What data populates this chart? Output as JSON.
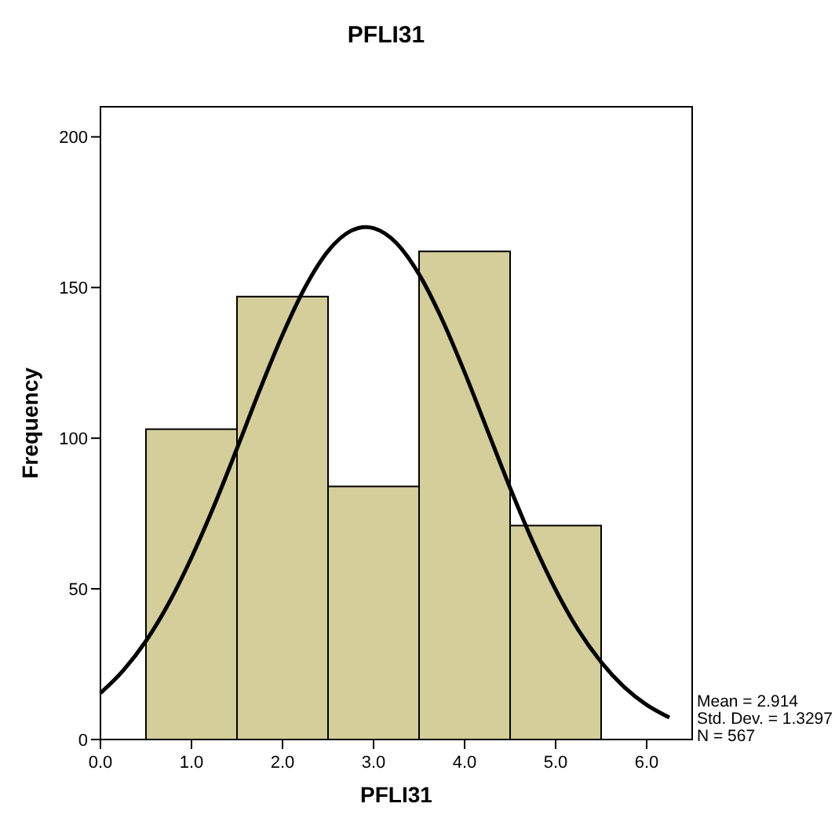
{
  "chart_data": {
    "type": "histogram",
    "title": "PFLI31",
    "xlabel": "PFLI31",
    "ylabel": "Frequency",
    "series": [
      {
        "bins": [
          0.5,
          1.5,
          2.5,
          3.5,
          4.5,
          5.5
        ],
        "values": [
          103,
          147,
          84,
          162,
          71
        ],
        "color": "#d3ce9a"
      },
      {
        "type": "line",
        "color": "#000000",
        "x": [
          0,
          0.25,
          0.5,
          0.75,
          1,
          1.25,
          1.5,
          1.75,
          2,
          2.25,
          2.5,
          2.75,
          2.914,
          3,
          3.25,
          3.5,
          3.75,
          4,
          4.25,
          4.5,
          4.75,
          5,
          5.25,
          5.5,
          5.75,
          6,
          6.25
        ],
        "values": [
          15.4,
          22.9,
          32.7,
          45.2,
          60.4,
          77.7,
          96.6,
          116,
          134.3,
          150.2,
          162.1,
          168.8,
          170.1,
          169.7,
          164.8,
          154.4,
          139.6,
          121.9,
          102.7,
          83.5,
          65.6,
          49.7,
          36.3,
          25.7,
          17.5,
          11.5,
          7.3
        ]
      }
    ],
    "xlim": [
      0,
      6.5
    ],
    "xticks": [
      {
        "value": 0,
        "label": "0.0"
      },
      {
        "value": 1,
        "label": "1.0"
      },
      {
        "value": 2,
        "label": "2.0"
      },
      {
        "value": 3,
        "label": "3.0"
      },
      {
        "value": 4,
        "label": "4.0"
      },
      {
        "value": 5,
        "label": "5.0"
      },
      {
        "value": 6,
        "label": "6.0"
      }
    ],
    "ylim": [
      0,
      210
    ],
    "yticks": [
      0,
      50,
      100,
      150,
      200
    ],
    "grid": false,
    "annotations": [
      "Mean = 2.914",
      "Std. Dev. = 1.3297",
      "N = 567"
    ]
  }
}
